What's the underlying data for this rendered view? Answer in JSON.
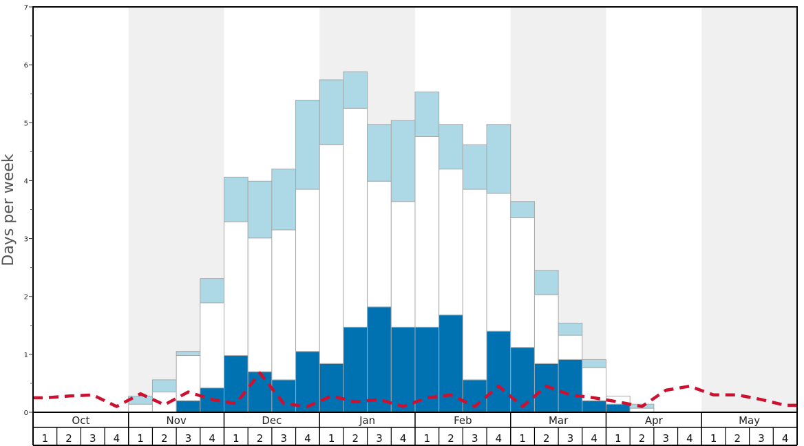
{
  "chart_data": {
    "type": "bar",
    "stacked": true,
    "ylabel": "Days per week",
    "xlabel": "",
    "ylim": [
      0,
      7
    ],
    "yticks": [
      "0",
      "1",
      "2",
      "3",
      "4",
      "5",
      "6",
      "7"
    ],
    "grid": false,
    "legend": "none",
    "months": [
      "Oct",
      "Nov",
      "Dec",
      "Jan",
      "Feb",
      "Mar",
      "Apr",
      "May"
    ],
    "weeks": [
      "1",
      "2",
      "3",
      "4"
    ],
    "series": [
      {
        "color": "#0072b2",
        "values": [
          0,
          0,
          0,
          0,
          0,
          0,
          0.2,
          0.42,
          0.98,
          0.7,
          0.56,
          1.05,
          0.84,
          1.47,
          1.82,
          1.47,
          1.47,
          1.68,
          0.56,
          1.4,
          1.12,
          0.84,
          0.91,
          0.2,
          0.14,
          0,
          0,
          0,
          0,
          0,
          0,
          0
        ]
      },
      {
        "color": "#ffffff",
        "values": [
          0,
          0,
          0,
          0,
          0.14,
          0.35,
          0.78,
          1.47,
          2.31,
          2.31,
          2.59,
          2.8,
          3.78,
          3.78,
          2.17,
          2.17,
          3.29,
          2.52,
          3.29,
          2.38,
          2.24,
          1.19,
          0.42,
          0.57,
          0.14,
          0.07,
          0,
          0,
          0,
          0,
          0,
          0
        ]
      },
      {
        "color": "#add8e6",
        "values": [
          0,
          0,
          0,
          0,
          0.14,
          0.21,
          0.07,
          0.42,
          0.77,
          0.98,
          1.05,
          1.54,
          1.12,
          0.63,
          0.98,
          1.4,
          0.77,
          0.77,
          0.77,
          1.19,
          0.28,
          0.42,
          0.21,
          0.14,
          0,
          0.07,
          0,
          0,
          0,
          0,
          0,
          0
        ]
      },
      {
        "type": "line",
        "color": "#cc1130",
        "values": [
          0.25,
          0.28,
          0.3,
          0.1,
          0.32,
          0.13,
          0.35,
          0.22,
          0.15,
          0.68,
          0.15,
          0.1,
          0.28,
          0.18,
          0.22,
          0.1,
          0.25,
          0.3,
          0.1,
          0.45,
          0.1,
          0.45,
          0.3,
          0.25,
          0.18,
          0.1,
          0.38,
          0.45,
          0.3,
          0.3,
          0.22,
          0.12
        ]
      }
    ]
  }
}
